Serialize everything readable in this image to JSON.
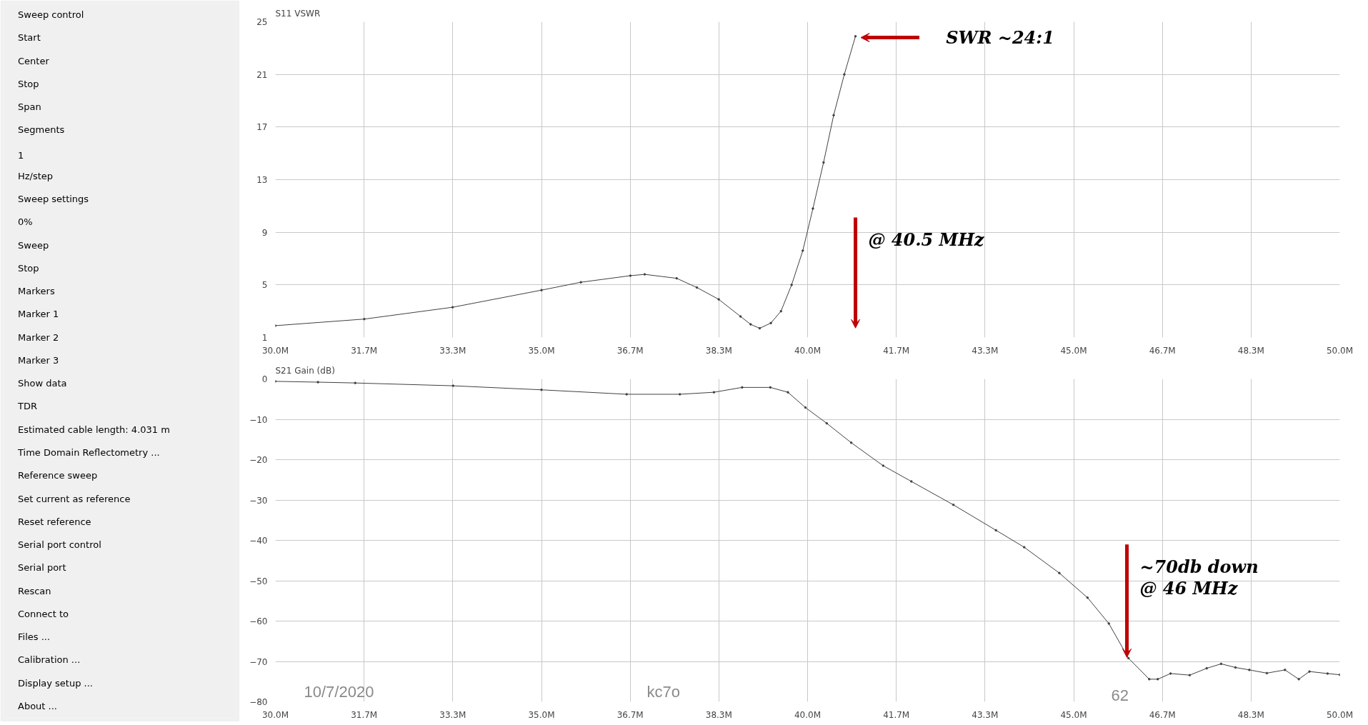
{
  "chart_data": [
    {
      "type": "other",
      "annotations": [
        "Sweep control",
        "Start",
        "Center",
        "Stop",
        "Span",
        "Segments",
        "1",
        "Hz/step",
        "Sweep settings",
        "0%",
        "Sweep",
        "Stop",
        "Markers",
        "Marker 1",
        "Marker 2",
        "Marker 3",
        "Show data",
        "TDR",
        "Estimated cable length:  4.031 m",
        "Time Domain Reflectometry ...",
        "Reference sweep",
        "Set current as reference",
        "Reset reference",
        "Serial port control",
        "Serial port",
        "Rescan",
        "Connect to",
        "Files ...",
        "Calibration ...",
        "Display setup ...",
        "About ..."
      ]
    },
    {
      "type": "line",
      "title": "S11 VSWR",
      "marker": "circle",
      "grid": true,
      "xlim": [
        30,
        50
      ],
      "xticks": [
        {
          "value": 30,
          "label": "30.0M"
        },
        {
          "value": 31.667,
          "label": "31.7M"
        },
        {
          "value": 33.333,
          "label": "33.3M"
        },
        {
          "value": 35,
          "label": "35.0M"
        },
        {
          "value": 36.667,
          "label": "36.7M"
        },
        {
          "value": 38.333,
          "label": "38.3M"
        },
        {
          "value": 40,
          "label": "40.0M"
        },
        {
          "value": 41.667,
          "label": "41.7M"
        },
        {
          "value": 43.333,
          "label": "43.3M"
        },
        {
          "value": 45,
          "label": "45.0M"
        },
        {
          "value": 46.667,
          "label": "46.7M"
        },
        {
          "value": 48.333,
          "label": "48.3M"
        },
        {
          "value": 50,
          "label": "50.0M"
        }
      ],
      "ylim": [
        1,
        25
      ],
      "yticks": [
        1,
        5,
        9,
        13,
        17,
        21,
        25
      ],
      "series": [
        {
          "color": "#404040",
          "x": [
            30,
            31.67,
            33.33,
            35,
            35.74,
            36.67,
            36.94,
            37.54,
            37.92,
            38.33,
            38.74,
            38.93,
            39.1,
            39.31,
            39.5,
            39.7,
            39.91,
            40.1,
            40.3,
            40.49,
            40.69,
            40.9
          ],
          "values": [
            1.9,
            2.4,
            3.3,
            4.6,
            5.2,
            5.7,
            5.8,
            5.5,
            4.8,
            3.9,
            2.6,
            2.0,
            1.7,
            2.1,
            3.0,
            5.0,
            7.6,
            10.8,
            14.3,
            17.9,
            21.0,
            23.9
          ]
        }
      ],
      "annotations": [
        "SWR ~24:1",
        "@ 40.5 MHz"
      ]
    },
    {
      "type": "line",
      "title": "S21 Gain (dB)",
      "marker": "circle",
      "grid": true,
      "xlim": [
        30,
        50
      ],
      "xticks": [
        {
          "value": 30,
          "label": "30.0M"
        },
        {
          "value": 31.667,
          "label": "31.7M"
        },
        {
          "value": 33.333,
          "label": "33.3M"
        },
        {
          "value": 35,
          "label": "35.0M"
        },
        {
          "value": 36.667,
          "label": "36.7M"
        },
        {
          "value": 38.333,
          "label": "38.3M"
        },
        {
          "value": 40,
          "label": "40.0M"
        },
        {
          "value": 41.667,
          "label": "41.7M"
        },
        {
          "value": 43.333,
          "label": "43.3M"
        },
        {
          "value": 45,
          "label": "45.0M"
        },
        {
          "value": 46.667,
          "label": "46.7M"
        },
        {
          "value": 48.333,
          "label": "48.3M"
        },
        {
          "value": 50,
          "label": "50.0M"
        }
      ],
      "ylim": [
        -80,
        0
      ],
      "yticks": [
        0,
        -10,
        -20,
        -30,
        -40,
        -50,
        -60,
        -70,
        -80
      ],
      "series": [
        {
          "color": "#404040",
          "x": [
            30,
            30.8,
            31.5,
            33.34,
            35,
            36.6,
            37.6,
            38.24,
            38.77,
            39.3,
            39.63,
            39.96,
            40.36,
            40.82,
            41.42,
            41.95,
            42.74,
            43.54,
            44.07,
            44.73,
            45.26,
            45.66,
            46.03,
            46.42,
            46.58,
            46.82,
            47.18,
            47.5,
            47.77,
            48.04,
            48.3,
            48.63,
            48.97,
            49.23,
            49.43,
            49.77,
            50
          ],
          "values": [
            -0.6,
            -0.8,
            -1.0,
            -1.7,
            -2.7,
            -3.8,
            -3.8,
            -3.3,
            -2.1,
            -2.1,
            -3.3,
            -7.1,
            -11.0,
            -15.8,
            -21.5,
            -25.4,
            -31.2,
            -37.5,
            -41.7,
            -48.1,
            -54.2,
            -60.6,
            -69.2,
            -74.4,
            -74.4,
            -73,
            -73.4,
            -71.7,
            -70.6,
            -71.5,
            -72.1,
            -72.9,
            -72.1,
            -74.4,
            -72.5,
            -73,
            -73.3
          ]
        }
      ],
      "annotations": [
        {
          "text": "~70db down\n@ 46 MHz",
          "x": 46,
          "y": -69
        },
        "10/7/2020",
        "kc7o",
        "62"
      ]
    }
  ]
}
